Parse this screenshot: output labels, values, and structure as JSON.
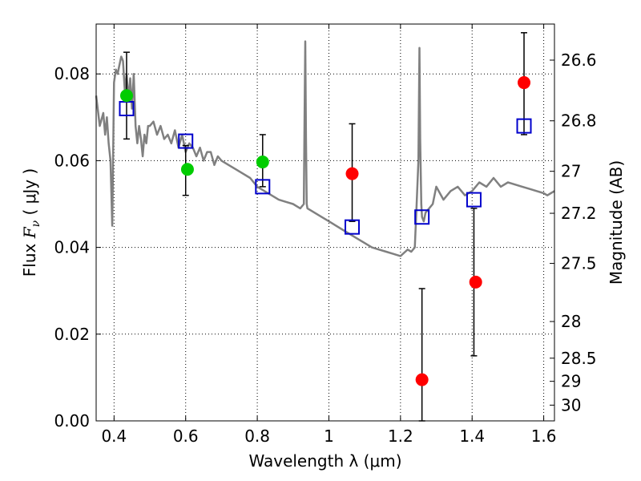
{
  "chart_data": {
    "type": "scatter",
    "title": "",
    "xlabel": "Wavelength  λ (μm)",
    "ylabel_prefix": "Flux  ",
    "ylabel_symbol": "F",
    "ylabel_subscript": "ν",
    "ylabel_suffix": "  ( μJy )",
    "y2label": "Magnitude (AB)",
    "xlim": [
      0.35,
      1.63
    ],
    "ylim": [
      0.0,
      0.0915
    ],
    "grid": true,
    "x_ticks": [
      {
        "value": 0.4,
        "label": "0.4"
      },
      {
        "value": 0.6,
        "label": "0.6"
      },
      {
        "value": 0.8,
        "label": "0.8"
      },
      {
        "value": 1.0,
        "label": "1"
      },
      {
        "value": 1.2,
        "label": "1.2"
      },
      {
        "value": 1.4,
        "label": "1.4"
      },
      {
        "value": 1.6,
        "label": "1.6"
      }
    ],
    "y_ticks": [
      {
        "value": 0.0,
        "label": "0.00"
      },
      {
        "value": 0.02,
        "label": "0.02"
      },
      {
        "value": 0.04,
        "label": "0.04"
      },
      {
        "value": 0.06,
        "label": "0.06"
      },
      {
        "value": 0.08,
        "label": "0.08"
      }
    ],
    "mag_ticks": [
      {
        "mag": 26.6,
        "label": "26.6"
      },
      {
        "mag": 26.8,
        "label": "26.8"
      },
      {
        "mag": 27.0,
        "label": "27"
      },
      {
        "mag": 27.2,
        "label": "27.2"
      },
      {
        "mag": 27.5,
        "label": "27.5"
      },
      {
        "mag": 28.0,
        "label": "28"
      },
      {
        "mag": 28.5,
        "label": "28.5"
      },
      {
        "mag": 29.0,
        "label": "29"
      },
      {
        "mag": 30.0,
        "label": "30"
      }
    ],
    "colors": {
      "model": "#808080",
      "green": "#00cc00",
      "red": "#ff0000",
      "square": "#0000cc",
      "errorbar": "#000000"
    },
    "series": [
      {
        "name": "model spectrum",
        "kind": "line",
        "x": [
          0.35,
          0.36,
          0.37,
          0.375,
          0.38,
          0.385,
          0.39,
          0.395,
          0.4,
          0.405,
          0.41,
          0.415,
          0.42,
          0.425,
          0.43,
          0.435,
          0.44,
          0.445,
          0.45,
          0.455,
          0.46,
          0.465,
          0.47,
          0.475,
          0.48,
          0.485,
          0.49,
          0.495,
          0.5,
          0.51,
          0.52,
          0.53,
          0.54,
          0.55,
          0.56,
          0.57,
          0.58,
          0.59,
          0.6,
          0.61,
          0.62,
          0.63,
          0.64,
          0.65,
          0.66,
          0.67,
          0.68,
          0.69,
          0.7,
          0.72,
          0.74,
          0.76,
          0.78,
          0.8,
          0.82,
          0.84,
          0.86,
          0.88,
          0.9,
          0.92,
          0.93,
          0.932,
          0.934,
          0.936,
          0.938,
          0.94,
          0.96,
          0.98,
          1.0,
          1.02,
          1.04,
          1.06,
          1.08,
          1.1,
          1.12,
          1.14,
          1.16,
          1.18,
          1.2,
          1.22,
          1.23,
          1.24,
          1.245,
          1.25,
          1.253,
          1.255,
          1.258,
          1.26,
          1.265,
          1.27,
          1.28,
          1.29,
          1.3,
          1.32,
          1.34,
          1.36,
          1.38,
          1.4,
          1.42,
          1.44,
          1.46,
          1.48,
          1.5,
          1.52,
          1.54,
          1.56,
          1.58,
          1.6,
          1.61,
          1.62,
          1.63
        ],
        "y": [
          0.075,
          0.068,
          0.071,
          0.066,
          0.07,
          0.064,
          0.06,
          0.045,
          0.078,
          0.081,
          0.08,
          0.082,
          0.084,
          0.083,
          0.076,
          0.08,
          0.074,
          0.079,
          0.072,
          0.08,
          0.068,
          0.064,
          0.068,
          0.065,
          0.061,
          0.066,
          0.064,
          0.068,
          0.068,
          0.069,
          0.066,
          0.068,
          0.065,
          0.066,
          0.064,
          0.067,
          0.063,
          0.066,
          0.062,
          0.064,
          0.063,
          0.061,
          0.063,
          0.06,
          0.062,
          0.062,
          0.059,
          0.061,
          0.06,
          0.059,
          0.058,
          0.057,
          0.056,
          0.054,
          0.053,
          0.052,
          0.051,
          0.0505,
          0.05,
          0.049,
          0.05,
          0.07,
          0.0875,
          0.065,
          0.05,
          0.049,
          0.048,
          0.047,
          0.046,
          0.045,
          0.044,
          0.043,
          0.042,
          0.041,
          0.04,
          0.0395,
          0.039,
          0.0385,
          0.038,
          0.0395,
          0.039,
          0.04,
          0.05,
          0.06,
          0.086,
          0.065,
          0.05,
          0.047,
          0.046,
          0.048,
          0.049,
          0.05,
          0.054,
          0.051,
          0.053,
          0.054,
          0.052,
          0.053,
          0.055,
          0.054,
          0.056,
          0.054,
          0.055,
          0.0545,
          0.054,
          0.0535,
          0.053,
          0.0525,
          0.052,
          0.0525,
          0.053
        ]
      },
      {
        "name": "observed (green)",
        "kind": "points",
        "color_key": "green",
        "x": [
          0.435,
          0.605,
          0.815
        ],
        "y": [
          0.075,
          0.058,
          0.0597
        ],
        "err_low": [
          null,
          null,
          0.054
        ],
        "err_high": [
          null,
          null,
          0.066
        ]
      },
      {
        "name": "observed (red)",
        "kind": "points",
        "color_key": "red",
        "x": [
          1.065,
          1.26,
          1.41,
          1.545
        ],
        "y": [
          0.057,
          0.0095,
          0.032,
          0.078
        ],
        "err_low": [
          null,
          null,
          null,
          null
        ],
        "err_high": [
          null,
          null,
          null,
          null
        ]
      },
      {
        "name": "model photometry",
        "kind": "squares",
        "color_key": "square",
        "x": [
          0.435,
          0.6,
          0.815,
          1.065,
          1.26,
          1.405,
          1.545
        ],
        "y": [
          0.072,
          0.0645,
          0.054,
          0.0447,
          0.047,
          0.051,
          0.068
        ],
        "err_low": [
          0.065,
          0.052,
          null,
          0.046,
          0.0,
          0.015,
          0.066
        ],
        "err_high": [
          0.085,
          0.0635,
          null,
          0.0685,
          0.0305,
          0.049,
          0.0895
        ]
      }
    ]
  }
}
